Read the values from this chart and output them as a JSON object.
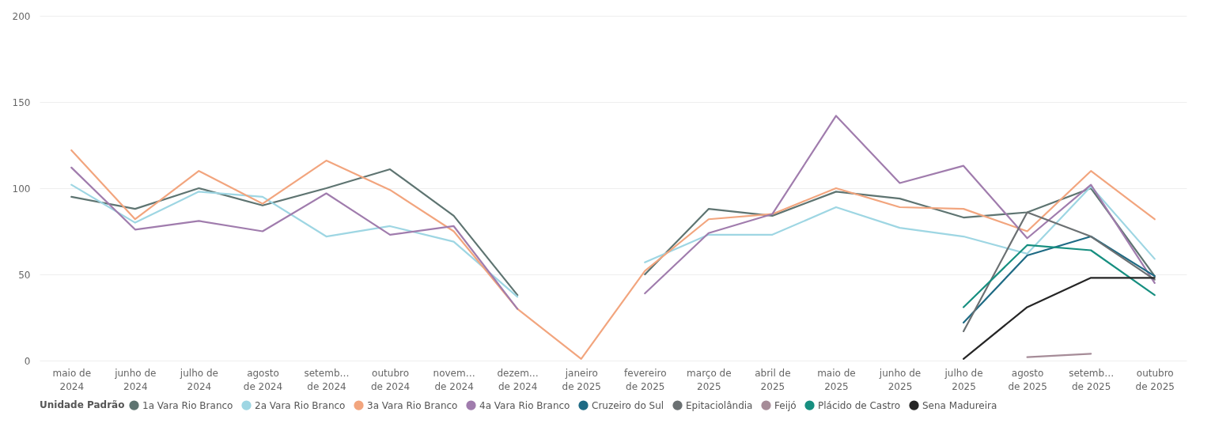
{
  "chart_data": {
    "type": "line",
    "legend_title": "Unidade Padrão",
    "legend": "bottom",
    "grid": "y",
    "categories": [
      "maio de 2024",
      "junho de 2024",
      "julho de 2024",
      "agosto de 2024",
      "setemb… de 2024",
      "outubro de 2024",
      "novem… de 2024",
      "dezem… de 2024",
      "janeiro de 2025",
      "fevereiro de 2025",
      "março de 2025",
      "abril de 2025",
      "maio de 2025",
      "junho de 2025",
      "julho de 2025",
      "agosto de 2025",
      "setemb… de 2025",
      "outubro de 2025"
    ],
    "ylim": [
      0,
      200
    ],
    "yticks": [
      0,
      50,
      100,
      150,
      200
    ],
    "series": [
      {
        "name": "1a Vara Rio Branco",
        "color": "#5e7471",
        "values": [
          95,
          88,
          100,
          90,
          100,
          111,
          84,
          38,
          null,
          50,
          88,
          84,
          98,
          94,
          83,
          86,
          100,
          49
        ]
      },
      {
        "name": "2a Vara Rio Branco",
        "color": "#9ed6e3",
        "values": [
          102,
          80,
          98,
          95,
          72,
          78,
          69,
          37,
          null,
          57,
          73,
          73,
          89,
          77,
          72,
          62,
          101,
          59
        ]
      },
      {
        "name": "3a Vara Rio Branco",
        "color": "#f2a57e",
        "values": [
          122,
          82,
          110,
          91,
          116,
          99,
          75,
          30,
          1,
          52,
          82,
          85,
          100,
          89,
          88,
          75,
          110,
          82
        ]
      },
      {
        "name": "4a Vara Rio Branco",
        "color": "#a07cad",
        "values": [
          112,
          76,
          81,
          75,
          97,
          73,
          78,
          30,
          null,
          39,
          74,
          85,
          142,
          103,
          113,
          71,
          102,
          45
        ]
      },
      {
        "name": "Cruzeiro do Sul",
        "color": "#1e6a84",
        "values": [
          null,
          null,
          null,
          null,
          null,
          null,
          null,
          null,
          null,
          null,
          null,
          null,
          null,
          null,
          22,
          61,
          72,
          49
        ]
      },
      {
        "name": "Epitaciolândia",
        "color": "#6b7072",
        "values": [
          null,
          null,
          null,
          null,
          null,
          null,
          null,
          null,
          null,
          null,
          null,
          null,
          null,
          null,
          17,
          86,
          72,
          47
        ]
      },
      {
        "name": "Feijó",
        "color": "#a68c98",
        "values": [
          null,
          null,
          null,
          null,
          null,
          null,
          null,
          null,
          null,
          null,
          null,
          null,
          null,
          null,
          null,
          2,
          4,
          null
        ]
      },
      {
        "name": "Plácido de Castro",
        "color": "#178f80",
        "values": [
          null,
          null,
          null,
          null,
          null,
          null,
          null,
          null,
          null,
          null,
          null,
          null,
          null,
          null,
          31,
          67,
          64,
          38
        ]
      },
      {
        "name": "Sena Madureira",
        "color": "#252525",
        "values": [
          null,
          null,
          null,
          null,
          null,
          null,
          null,
          null,
          null,
          null,
          null,
          null,
          null,
          null,
          1,
          31,
          48,
          48
        ]
      }
    ]
  }
}
